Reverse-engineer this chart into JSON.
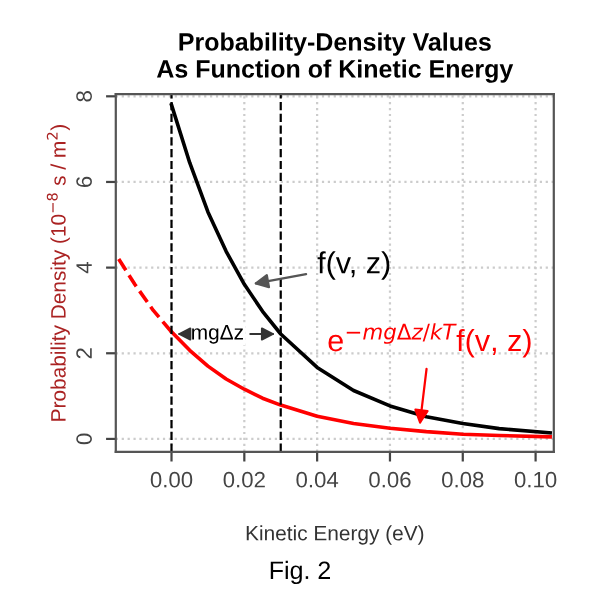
{
  "chart_data": {
    "type": "line",
    "title": "Probability-Density Values\nAs Function of Kinetic Energy",
    "xlabel": "Kinetic Energy (eV)",
    "ylabel": "Probability Density (10$^{−8}$ s / m$^{2}$)",
    "series": [
      {
        "color": "#000000",
        "line_style": "solid",
        "x": [
          0,
          0.005,
          0.01,
          0.015,
          0.02,
          0.025,
          0.03,
          0.04,
          0.05,
          0.06,
          0.07,
          0.08,
          0.09,
          0.104
        ],
        "values": [
          7.8,
          6.45,
          5.3,
          4.38,
          3.61,
          2.98,
          2.45,
          1.67,
          1.13,
          0.77,
          0.52,
          0.36,
          0.24,
          0.14
        ]
      },
      {
        "color": "#ff0000",
        "line_style": "solid",
        "x": [
          0,
          0.005,
          0.01,
          0.015,
          0.02,
          0.025,
          0.03,
          0.04,
          0.05,
          0.06,
          0.07,
          0.08,
          0.09,
          0.104
        ],
        "values": [
          2.5,
          2.07,
          1.7,
          1.4,
          1.16,
          0.95,
          0.79,
          0.53,
          0.36,
          0.25,
          0.17,
          0.11,
          0.08,
          0.05
        ]
      },
      {
        "color": "#ff0000",
        "line_style": "dashed",
        "x": [
          -0.0145,
          -0.01,
          -0.005,
          0
        ],
        "values": [
          4.2,
          3.6,
          3.0,
          2.5
        ]
      }
    ],
    "xlim": [
      -0.0153,
      0.105
    ],
    "ylim": [
      -0.3,
      8.05
    ],
    "xticks": [
      {
        "value": 0,
        "label": "0.00"
      },
      {
        "value": 0.02,
        "label": "0.02"
      },
      {
        "value": 0.04,
        "label": "0.04"
      },
      {
        "value": 0.06,
        "label": "0.06"
      },
      {
        "value": 0.08,
        "label": "0.08"
      },
      {
        "value": 0.1,
        "label": "0.10"
      }
    ],
    "yticks": [
      0,
      2,
      4,
      6,
      8
    ],
    "grid": true,
    "marker": "none",
    "legend": false,
    "ref_lines": [
      {
        "axis": "x",
        "value": 0,
        "line_style": "dashed",
        "color": "#000000"
      },
      {
        "axis": "x",
        "value": 0.03,
        "line_style": "dashed",
        "color": "#000000"
      }
    ],
    "annotations": [
      {
        "text": "f(v, z)",
        "x": 0.021,
        "y": 3.6
      },
      {
        "text": "mgΔz",
        "x": 0.03,
        "y": 2.45
      },
      {
        "text": "e$^{−mgΔz/kT}$f(v, z)",
        "x": 0.068,
        "y": 0.2
      },
      "Fig. 2"
    ]
  }
}
